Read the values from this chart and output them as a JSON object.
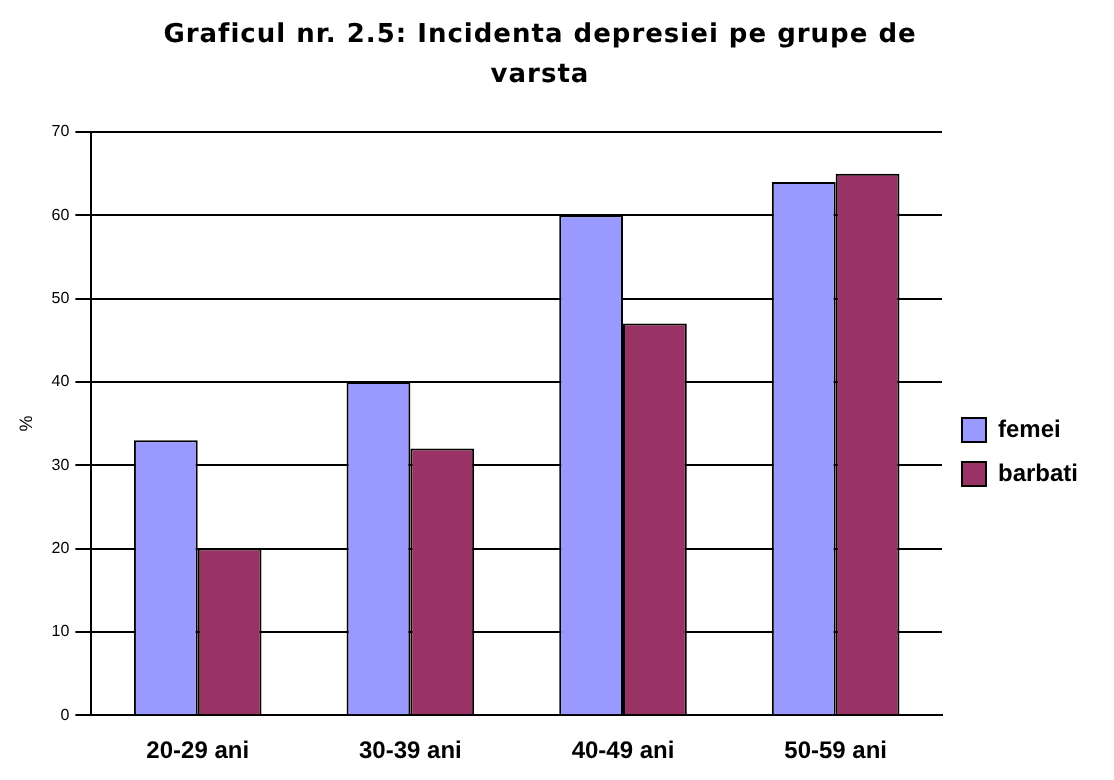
{
  "chart_data": {
    "type": "bar",
    "title": "Graficul nr. 2.5: Incidenta depresiei pe grupe de varsta",
    "ylabel": "%",
    "categories": [
      "20-29 ani",
      "30-39 ani",
      "40-49 ani",
      "50-59 ani"
    ],
    "series": [
      {
        "name": "femei",
        "color": "#9999ff",
        "values": [
          33,
          40,
          60,
          64
        ]
      },
      {
        "name": "barbati",
        "color": "#993366",
        "values": [
          20,
          32,
          47,
          65
        ]
      }
    ],
    "ylim": [
      0,
      70
    ],
    "yticks": [
      0,
      10,
      20,
      30,
      40,
      50,
      60,
      70
    ],
    "grid": "y",
    "legend": "right"
  }
}
